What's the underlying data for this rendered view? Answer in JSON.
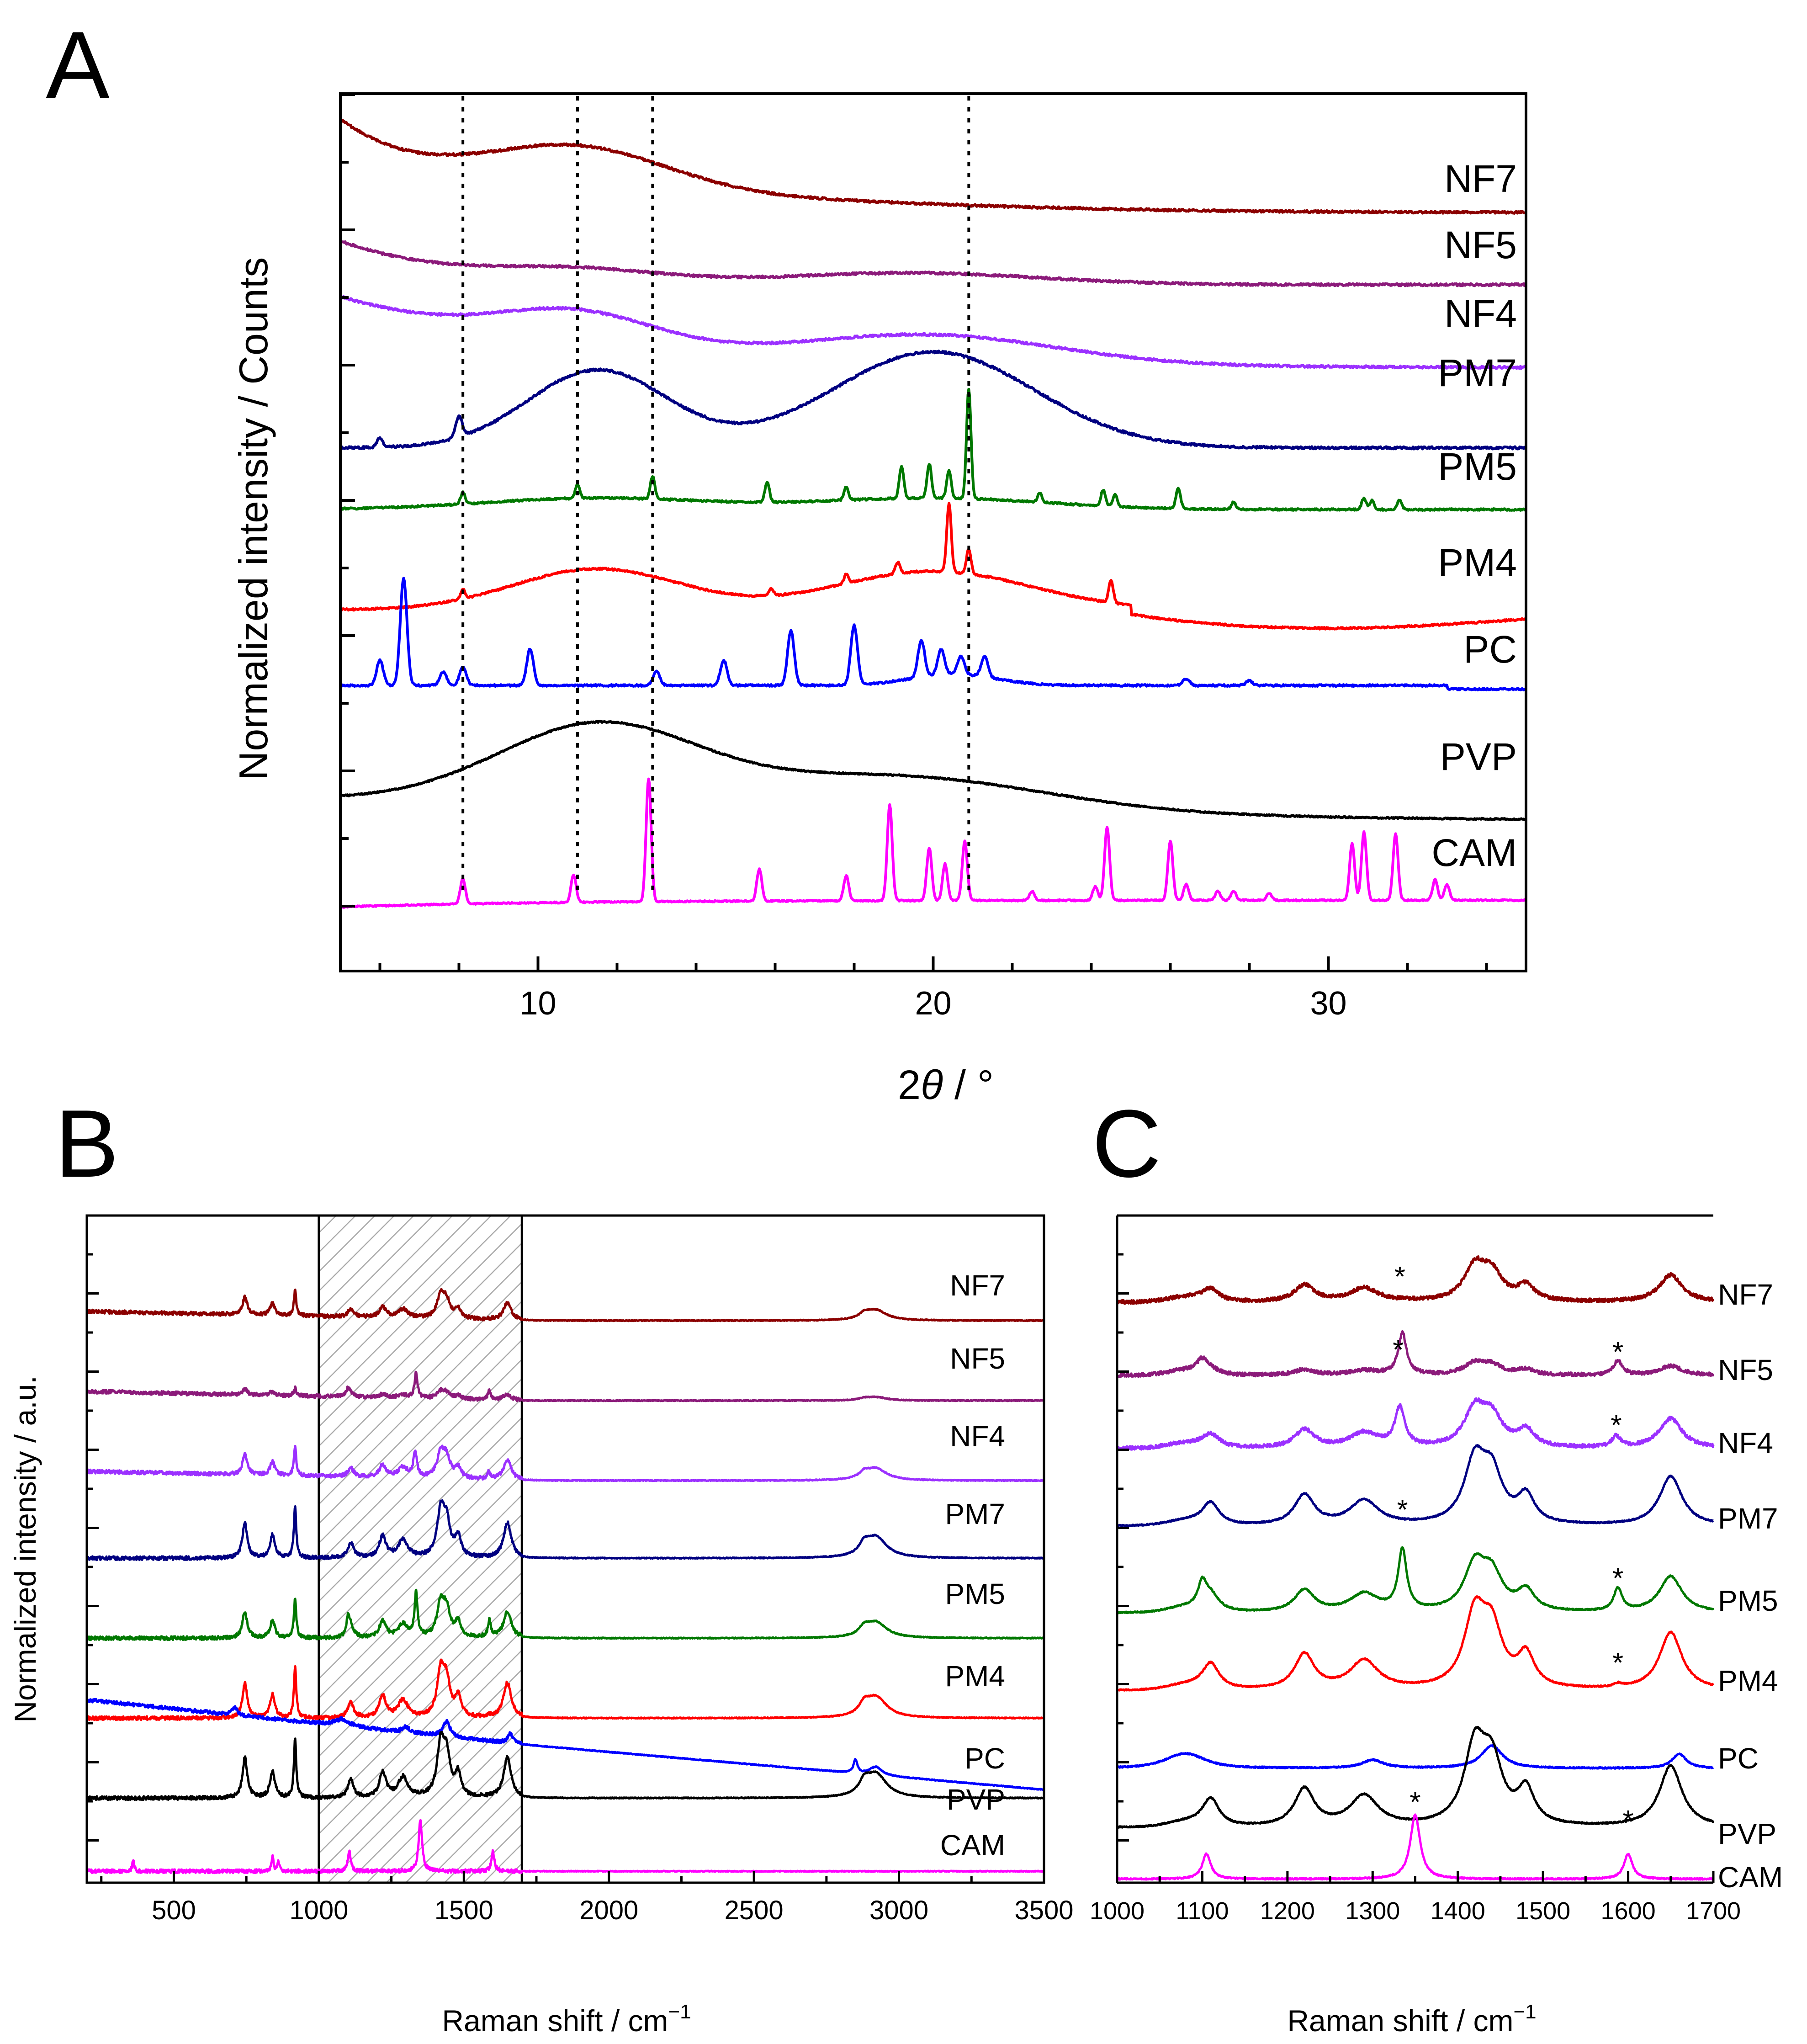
{
  "chart_data": [
    {
      "panel": "A",
      "type": "line",
      "title": "",
      "xlabel_prefix": "2",
      "xlabel_symbol": "θ",
      "xlabel_suffix": " / °",
      "ylabel": "Normalized intensity / Counts",
      "xlim": [
        5,
        35
      ],
      "xticks": [
        10,
        20,
        30
      ],
      "reference_lines_x": [
        8.1,
        11.0,
        12.9,
        20.9
      ],
      "series": [
        {
          "name": "NF7",
          "color": "#8b0000"
        },
        {
          "name": "NF5",
          "color": "#8b1a7a"
        },
        {
          "name": "NF4",
          "color": "#9b30ff"
        },
        {
          "name": "PM7",
          "color": "#000080"
        },
        {
          "name": "PM5",
          "color": "#007800"
        },
        {
          "name": "PM4",
          "color": "#ff0000"
        },
        {
          "name": "PC",
          "color": "#0000ff"
        },
        {
          "name": "PVP",
          "color": "#000000"
        },
        {
          "name": "CAM",
          "color": "#ff00ff"
        }
      ]
    },
    {
      "panel": "B",
      "type": "line",
      "xlabel": "Raman shift / cm",
      "xlabel_sup": "−1",
      "ylabel": "Normalized intensity / a.u.",
      "xlim": [
        200,
        3500
      ],
      "xticks": [
        500,
        1000,
        1500,
        2000,
        2500,
        3000,
        3500
      ],
      "highlight_range": [
        1000,
        1700
      ],
      "series": [
        {
          "name": "NF7",
          "color": "#8b0000"
        },
        {
          "name": "NF5",
          "color": "#8b1a7a"
        },
        {
          "name": "NF4",
          "color": "#9b30ff"
        },
        {
          "name": "PM7",
          "color": "#000080"
        },
        {
          "name": "PM5",
          "color": "#007800"
        },
        {
          "name": "PM4",
          "color": "#ff0000"
        },
        {
          "name": "PC",
          "color": "#0000ff"
        },
        {
          "name": "PVP",
          "color": "#000000"
        },
        {
          "name": "CAM",
          "color": "#ff00ff"
        }
      ]
    },
    {
      "panel": "C",
      "type": "line",
      "xlabel": "Raman shift / cm",
      "xlabel_sup": "−1",
      "xlim": [
        1000,
        1700
      ],
      "xticks": [
        1000,
        1100,
        1200,
        1300,
        1400,
        1500,
        1600,
        1700
      ],
      "marker": "*",
      "series": [
        {
          "name": "NF7",
          "color": "#8b0000"
        },
        {
          "name": "NF5",
          "color": "#8b1a7a"
        },
        {
          "name": "NF4",
          "color": "#9b30ff"
        },
        {
          "name": "PM7",
          "color": "#000080"
        },
        {
          "name": "PM5",
          "color": "#007800"
        },
        {
          "name": "PM4",
          "color": "#ff0000"
        },
        {
          "name": "PC",
          "color": "#0000ff"
        },
        {
          "name": "PVP",
          "color": "#000000"
        },
        {
          "name": "CAM",
          "color": "#ff00ff"
        }
      ]
    }
  ]
}
